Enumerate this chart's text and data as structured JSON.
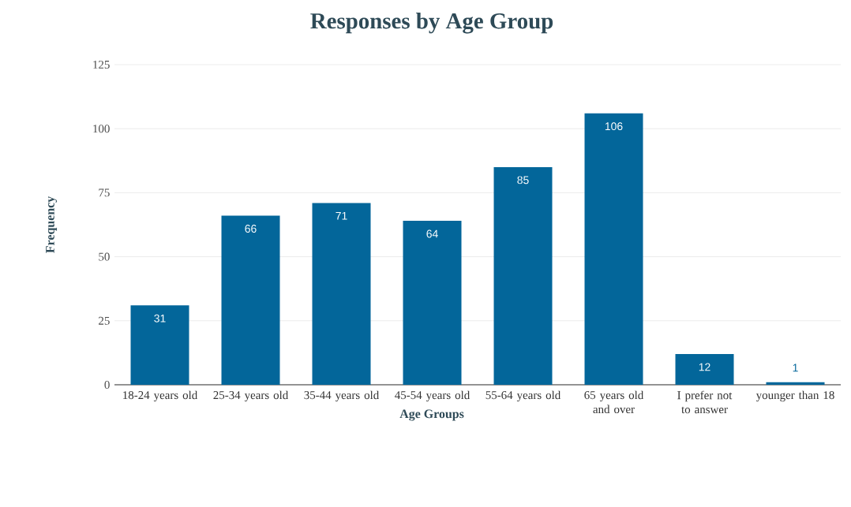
{
  "chart_data": {
    "type": "bar",
    "title": "Responses by Age Group",
    "xlabel": "Age Groups",
    "ylabel": "Frequency",
    "categories": [
      "18-24 years old",
      "25-34 years old",
      "35-44 years old",
      "45-54 years old",
      "55-64 years old",
      "65 years old and over",
      "I prefer not to answer",
      "younger than 18"
    ],
    "values": [
      31,
      66,
      71,
      64,
      85,
      106,
      12,
      1
    ],
    "color": "#03669a",
    "ylim": [
      0,
      125
    ],
    "yticks": [
      0,
      25,
      50,
      75,
      100,
      125
    ],
    "grid": "y",
    "data_labels": true
  }
}
